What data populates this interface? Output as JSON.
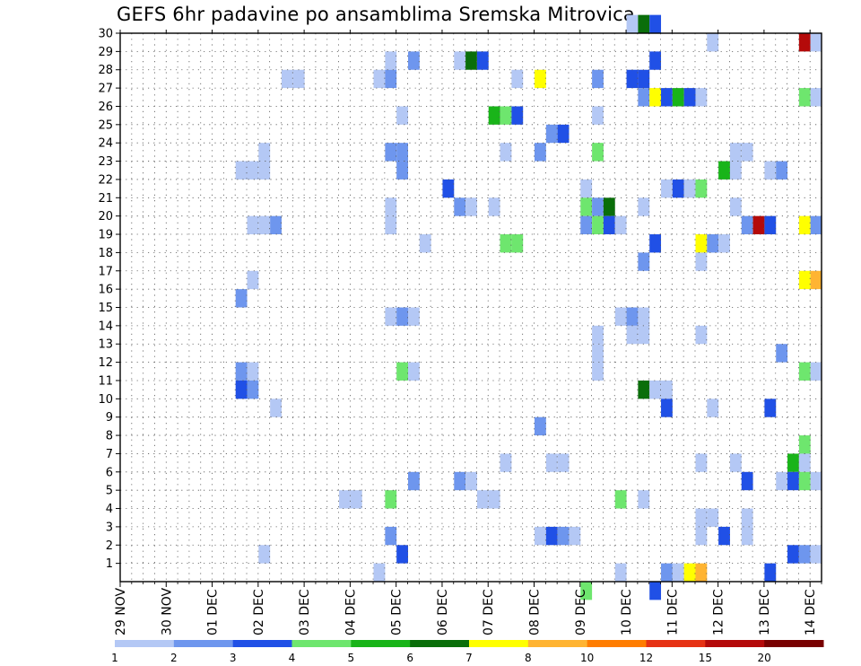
{
  "chart_data": {
    "type": "heatmap",
    "title": "GEFS 6hr padavine po ansamblima Sremska Mitrovica",
    "xlabel": "",
    "ylabel": "",
    "x_ticks": [
      "29 NOV",
      "30 NOV",
      "01 DEC",
      "02 DEC",
      "03 DEC",
      "04 DEC",
      "05 DEC",
      "06 DEC",
      "07 DEC",
      "08 DEC",
      "09 DEC",
      "10 DEC",
      "11 DEC",
      "12 DEC",
      "13 DEC",
      "14 DEC"
    ],
    "x_range": [
      0,
      61
    ],
    "x_unit": "6-hour step from 29 NOV 00z",
    "y_ticks": [
      1,
      2,
      3,
      4,
      5,
      6,
      7,
      8,
      9,
      10,
      11,
      12,
      13,
      14,
      15,
      16,
      17,
      18,
      19,
      20,
      21,
      22,
      23,
      24,
      25,
      26,
      27,
      28,
      29,
      30
    ],
    "y_range": [
      0,
      30
    ],
    "grid": true,
    "legend": {
      "placement": "bottom",
      "labels": [
        "1",
        "2",
        "3",
        "4",
        "5",
        "6",
        "7",
        "8",
        "10",
        "12",
        "15",
        "20"
      ],
      "colors": [
        "#b4c8f5",
        "#6e96ee",
        "#2050e6",
        "#6ee66e",
        "#19b419",
        "#0a6e0a",
        "#ffff00",
        "#ffb432",
        "#ff7d00",
        "#e63214",
        "#b40a0a",
        "#780000"
      ]
    },
    "cells": [
      [
        44,
        30,
        0
      ],
      [
        45,
        30,
        5
      ],
      [
        46,
        30,
        2
      ],
      [
        51,
        29,
        0
      ],
      [
        59,
        29,
        10
      ],
      [
        60,
        29,
        0
      ],
      [
        23,
        28,
        0
      ],
      [
        25,
        28,
        1
      ],
      [
        29,
        28,
        0
      ],
      [
        30,
        28,
        5
      ],
      [
        31,
        28,
        2
      ],
      [
        46,
        28,
        2
      ],
      [
        14,
        27,
        0
      ],
      [
        15,
        27,
        0
      ],
      [
        22,
        27,
        0
      ],
      [
        23,
        27,
        1
      ],
      [
        34,
        27,
        0
      ],
      [
        36,
        27,
        6
      ],
      [
        41,
        27,
        1
      ],
      [
        44,
        27,
        2
      ],
      [
        45,
        27,
        2
      ],
      [
        45,
        26,
        1
      ],
      [
        46,
        26,
        6
      ],
      [
        47,
        26,
        2
      ],
      [
        48,
        26,
        4
      ],
      [
        49,
        26,
        2
      ],
      [
        50,
        26,
        0
      ],
      [
        59,
        26,
        3
      ],
      [
        60,
        26,
        0
      ],
      [
        24,
        25,
        0
      ],
      [
        32,
        25,
        4
      ],
      [
        33,
        25,
        3
      ],
      [
        34,
        25,
        2
      ],
      [
        41,
        25,
        0
      ],
      [
        37,
        24,
        1
      ],
      [
        38,
        24,
        2
      ],
      [
        12,
        23,
        0
      ],
      [
        23,
        23,
        1
      ],
      [
        24,
        23,
        1
      ],
      [
        33,
        23,
        0
      ],
      [
        36,
        23,
        1
      ],
      [
        41,
        23,
        3
      ],
      [
        53,
        23,
        0
      ],
      [
        54,
        23,
        0
      ],
      [
        10,
        22,
        0
      ],
      [
        11,
        22,
        0
      ],
      [
        12,
        22,
        0
      ],
      [
        24,
        22,
        1
      ],
      [
        52,
        22,
        4
      ],
      [
        53,
        22,
        0
      ],
      [
        56,
        22,
        0
      ],
      [
        57,
        22,
        1
      ],
      [
        28,
        21,
        2
      ],
      [
        40,
        21,
        0
      ],
      [
        47,
        21,
        0
      ],
      [
        48,
        21,
        2
      ],
      [
        49,
        21,
        0
      ],
      [
        50,
        21,
        3
      ],
      [
        23,
        20,
        0
      ],
      [
        29,
        20,
        1
      ],
      [
        30,
        20,
        0
      ],
      [
        32,
        20,
        0
      ],
      [
        40,
        20,
        3
      ],
      [
        41,
        20,
        1
      ],
      [
        42,
        20,
        5
      ],
      [
        45,
        20,
        0
      ],
      [
        53,
        20,
        0
      ],
      [
        11,
        19,
        0
      ],
      [
        12,
        19,
        0
      ],
      [
        13,
        19,
        1
      ],
      [
        23,
        19,
        0
      ],
      [
        40,
        19,
        1
      ],
      [
        41,
        19,
        3
      ],
      [
        42,
        19,
        2
      ],
      [
        43,
        19,
        0
      ],
      [
        54,
        19,
        1
      ],
      [
        55,
        19,
        10
      ],
      [
        56,
        19,
        2
      ],
      [
        59,
        19,
        6
      ],
      [
        60,
        19,
        1
      ],
      [
        26,
        18,
        0
      ],
      [
        33,
        18,
        3
      ],
      [
        34,
        18,
        3
      ],
      [
        46,
        18,
        2
      ],
      [
        50,
        18,
        6
      ],
      [
        51,
        18,
        1
      ],
      [
        52,
        18,
        0
      ],
      [
        45,
        17,
        1
      ],
      [
        50,
        17,
        0
      ],
      [
        11,
        16,
        0
      ],
      [
        59,
        16,
        6
      ],
      [
        60,
        16,
        7
      ],
      [
        10,
        15,
        1
      ],
      [
        23,
        14,
        0
      ],
      [
        24,
        14,
        1
      ],
      [
        25,
        14,
        0
      ],
      [
        43,
        14,
        0
      ],
      [
        44,
        14,
        1
      ],
      [
        45,
        14,
        0
      ],
      [
        41,
        13,
        0
      ],
      [
        44,
        13,
        0
      ],
      [
        45,
        13,
        0
      ],
      [
        50,
        13,
        0
      ],
      [
        41,
        12,
        0
      ],
      [
        57,
        12,
        1
      ],
      [
        10,
        11,
        1
      ],
      [
        11,
        11,
        0
      ],
      [
        24,
        11,
        3
      ],
      [
        25,
        11,
        0
      ],
      [
        41,
        11,
        0
      ],
      [
        59,
        11,
        3
      ],
      [
        60,
        11,
        0
      ],
      [
        10,
        10,
        2
      ],
      [
        11,
        10,
        1
      ],
      [
        45,
        10,
        5
      ],
      [
        46,
        10,
        0
      ],
      [
        47,
        10,
        0
      ],
      [
        13,
        9,
        0
      ],
      [
        47,
        9,
        2
      ],
      [
        51,
        9,
        0
      ],
      [
        56,
        9,
        2
      ],
      [
        36,
        8,
        1
      ],
      [
        59,
        7,
        3
      ],
      [
        33,
        6,
        0
      ],
      [
        37,
        6,
        0
      ],
      [
        38,
        6,
        0
      ],
      [
        50,
        6,
        0
      ],
      [
        53,
        6,
        0
      ],
      [
        58,
        6,
        4
      ],
      [
        59,
        6,
        0
      ],
      [
        25,
        5,
        1
      ],
      [
        29,
        5,
        1
      ],
      [
        30,
        5,
        0
      ],
      [
        54,
        5,
        2
      ],
      [
        57,
        5,
        0
      ],
      [
        58,
        5,
        2
      ],
      [
        59,
        5,
        3
      ],
      [
        60,
        5,
        0
      ],
      [
        19,
        4,
        0
      ],
      [
        20,
        4,
        0
      ],
      [
        23,
        4,
        3
      ],
      [
        31,
        4,
        0
      ],
      [
        32,
        4,
        0
      ],
      [
        43,
        4,
        3
      ],
      [
        45,
        4,
        0
      ],
      [
        50,
        3,
        0
      ],
      [
        51,
        3,
        0
      ],
      [
        54,
        3,
        0
      ],
      [
        23,
        2,
        1
      ],
      [
        36,
        2,
        0
      ],
      [
        37,
        2,
        2
      ],
      [
        38,
        2,
        1
      ],
      [
        39,
        2,
        0
      ],
      [
        50,
        2,
        0
      ],
      [
        52,
        2,
        2
      ],
      [
        54,
        2,
        0
      ],
      [
        12,
        1,
        0
      ],
      [
        24,
        1,
        2
      ],
      [
        58,
        1,
        2
      ],
      [
        59,
        1,
        1
      ],
      [
        60,
        1,
        0
      ],
      [
        22,
        0,
        0
      ],
      [
        43,
        0,
        0
      ],
      [
        47,
        0,
        1
      ],
      [
        48,
        0,
        0
      ],
      [
        49,
        0,
        6
      ],
      [
        50,
        0,
        7
      ],
      [
        56,
        0,
        2
      ],
      [
        40,
        -1,
        3
      ],
      [
        46,
        -1,
        2
      ]
    ]
  }
}
